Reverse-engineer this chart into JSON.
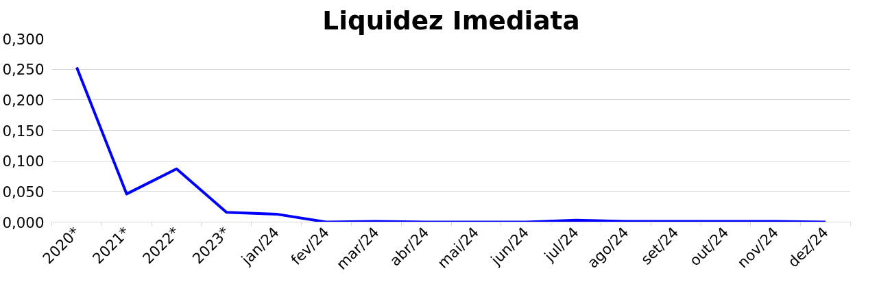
{
  "chart_data": {
    "type": "line",
    "title": "Liquidez Imediata",
    "categories": [
      "2020*",
      "2021*",
      "2022*",
      "2023*",
      "jan/24",
      "fev/24",
      "mar/24",
      "abr/24",
      "mai/24",
      "jun/24",
      "jul/24",
      "ago/24",
      "set/24",
      "out/24",
      "nov/24",
      "dez/24"
    ],
    "series": [
      {
        "color": "#0000ff",
        "values": [
          0.253,
          0.046,
          0.087,
          0.016,
          0.013,
          0.0,
          0.001,
          0.0,
          0.0,
          0.0,
          0.003,
          0.001,
          0.001,
          0.001,
          0.001,
          0.0
        ]
      }
    ],
    "ylim": [
      0,
      0.3
    ],
    "yticks": [
      {
        "value": 0,
        "label": "0,000"
      },
      {
        "value": 0.05,
        "label": "0,050"
      },
      {
        "value": 0.1,
        "label": "0,100"
      },
      {
        "value": 0.15,
        "label": "0,150"
      },
      {
        "value": 0.2,
        "label": "0,200"
      },
      {
        "value": 0.25,
        "label": "0,250"
      },
      {
        "value": 0.3,
        "label": "0,300"
      }
    ],
    "grid": "y",
    "marker": "none",
    "line_style": "solid"
  }
}
